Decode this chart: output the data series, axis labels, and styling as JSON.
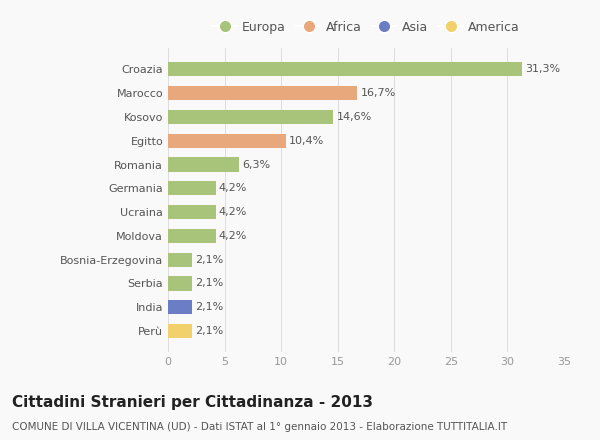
{
  "categories": [
    "Croazia",
    "Marocco",
    "Kosovo",
    "Egitto",
    "Romania",
    "Germania",
    "Ucraina",
    "Moldova",
    "Bosnia-Erzegovina",
    "Serbia",
    "India",
    "Perù"
  ],
  "values": [
    31.3,
    16.7,
    14.6,
    10.4,
    6.3,
    4.2,
    4.2,
    4.2,
    2.1,
    2.1,
    2.1,
    2.1
  ],
  "labels": [
    "31,3%",
    "16,7%",
    "14,6%",
    "10,4%",
    "6,3%",
    "4,2%",
    "4,2%",
    "4,2%",
    "2,1%",
    "2,1%",
    "2,1%",
    "2,1%"
  ],
  "colors": [
    "#a8c47a",
    "#e8a87c",
    "#a8c47a",
    "#e8a87c",
    "#a8c47a",
    "#a8c47a",
    "#a8c47a",
    "#a8c47a",
    "#a8c47a",
    "#a8c47a",
    "#6b7ec5",
    "#f2d06b"
  ],
  "legend": [
    {
      "label": "Europa",
      "color": "#a8c47a"
    },
    {
      "label": "Africa",
      "color": "#e8a87c"
    },
    {
      "label": "Asia",
      "color": "#6b7ec5"
    },
    {
      "label": "America",
      "color": "#f2d06b"
    }
  ],
  "xlim": [
    0,
    35
  ],
  "xticks": [
    0,
    5,
    10,
    15,
    20,
    25,
    30,
    35
  ],
  "title": "Cittadini Stranieri per Cittadinanza - 2013",
  "subtitle": "COMUNE DI VILLA VICENTINA (UD) - Dati ISTAT al 1° gennaio 2013 - Elaborazione TUTTITALIA.IT",
  "background_color": "#f9f9f9",
  "bar_height": 0.6,
  "title_fontsize": 11,
  "subtitle_fontsize": 7.5,
  "label_fontsize": 8,
  "tick_fontsize": 8,
  "legend_fontsize": 9
}
